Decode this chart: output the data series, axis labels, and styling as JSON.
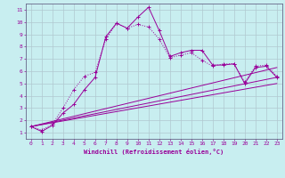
{
  "xlabel": "Windchill (Refroidissement éolien,°C)",
  "bg_color": "#c8eef0",
  "grid_color": "#b0c8d0",
  "line_color": "#990099",
  "xlim": [
    -0.5,
    23.5
  ],
  "ylim": [
    0.5,
    11.5
  ],
  "xticks": [
    0,
    1,
    2,
    3,
    4,
    5,
    6,
    7,
    8,
    9,
    10,
    11,
    12,
    13,
    14,
    15,
    16,
    17,
    18,
    19,
    20,
    21,
    22,
    23
  ],
  "yticks": [
    1,
    2,
    3,
    4,
    5,
    6,
    7,
    8,
    9,
    10,
    11
  ],
  "line1_x": [
    0,
    1,
    2,
    3,
    4,
    5,
    6,
    7,
    8,
    9,
    10,
    11,
    12,
    13,
    14,
    15,
    16,
    17,
    18,
    19,
    20,
    21,
    22,
    23
  ],
  "line1_y": [
    1.5,
    1.1,
    1.6,
    2.6,
    3.3,
    4.5,
    5.5,
    8.8,
    9.9,
    9.5,
    10.4,
    11.2,
    9.3,
    7.2,
    7.5,
    7.7,
    7.7,
    6.5,
    6.5,
    6.6,
    5.0,
    6.3,
    6.4,
    5.5
  ],
  "line2_x": [
    0,
    1,
    2,
    3,
    4,
    5,
    6,
    7,
    8,
    9,
    10,
    11,
    12,
    13,
    14,
    15,
    16,
    17,
    18,
    19,
    20,
    21,
    22,
    23
  ],
  "line2_y": [
    1.5,
    1.2,
    1.7,
    3.0,
    4.5,
    5.6,
    5.9,
    8.6,
    9.9,
    9.5,
    9.8,
    9.6,
    8.6,
    7.1,
    7.3,
    7.5,
    6.9,
    6.4,
    6.6,
    6.6,
    5.1,
    6.4,
    6.5,
    5.6
  ],
  "line3_x": [
    0,
    23
  ],
  "line3_y": [
    1.5,
    6.3
  ],
  "line4_x": [
    0,
    23
  ],
  "line4_y": [
    1.5,
    5.5
  ],
  "line5_x": [
    0,
    23
  ],
  "line5_y": [
    1.5,
    5.0
  ]
}
